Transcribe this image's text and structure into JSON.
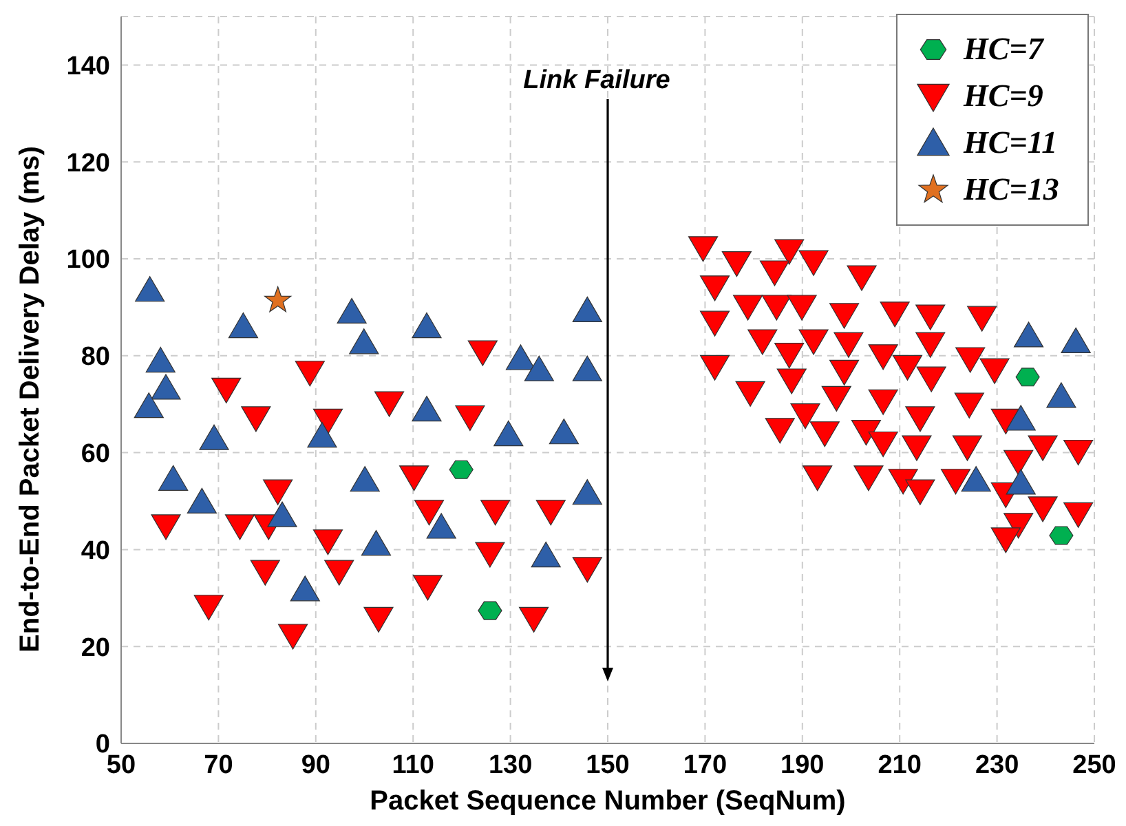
{
  "chart_data": {
    "type": "scatter",
    "xlabel": "Packet Sequence Number (SeqNum)",
    "ylabel": "End-to-End Packet Delivery Delay (ms)",
    "xlim": [
      50,
      250
    ],
    "xticks": [
      50,
      70,
      90,
      110,
      130,
      150,
      170,
      190,
      210,
      230,
      250
    ],
    "ylim": [
      0,
      150
    ],
    "yticks": [
      0,
      20,
      40,
      60,
      80,
      100,
      120,
      140
    ],
    "grid": true,
    "legend": "top right",
    "ref_lines": [
      {
        "axis": "x",
        "value": 150,
        "label": "Link Failure"
      }
    ],
    "series": [
      {
        "name": "HC=7",
        "color": "#00b050",
        "x": [
          119.9,
          125.8,
          236.3,
          243.2
        ],
        "values": [
          56.5,
          27.4,
          75.6,
          42.9
        ]
      },
      {
        "name": "HC=9",
        "color": "#ff0000",
        "marker": "triangle_down",
        "x": [
          88.8,
          71.6,
          77.7,
          92.5,
          82.2,
          59.2,
          74.4,
          80.3,
          92.5,
          79.6,
          94.8,
          68.0,
          85.3,
          124.3,
          105.1,
          121.7,
          110.2,
          113.3,
          126.9,
          138.3,
          125.8,
          145.8,
          113.0,
          102.9,
          134.8,
          169.6,
          176.5,
          187.3,
          184.3,
          192.3,
          202.2,
          172.0,
          178.8,
          184.7,
          189.9,
          198.6,
          172.0,
          181.8,
          192.3,
          199.5,
          187.3,
          206.6,
          172.0,
          198.6,
          187.8,
          179.3,
          197.0,
          206.6,
          190.6,
          185.4,
          194.6,
          203.1,
          206.6,
          193.1,
          203.6,
          209.0,
          216.3,
          226.9,
          216.3,
          211.6,
          216.5,
          224.5,
          229.5,
          214.2,
          224.3,
          231.8,
          213.5,
          223.9,
          239.4,
          246.7,
          234.4,
          210.7,
          221.5,
          214.2,
          231.8,
          239.4,
          246.7,
          234.4,
          231.8
        ],
        "values": [
          76.6,
          73.1,
          67.2,
          66.7,
          52.1,
          44.9,
          44.9,
          44.9,
          41.8,
          35.5,
          35.5,
          28.3,
          22.3,
          80.8,
          70.3,
          67.4,
          55.0,
          47.9,
          47.9,
          47.9,
          39.2,
          36.1,
          32.4,
          25.8,
          25.8,
          102.3,
          99.2,
          101.7,
          97.3,
          99.4,
          96.3,
          94.2,
          90.2,
          90.2,
          90.2,
          88.5,
          86.9,
          83.1,
          83.1,
          82.5,
          80.3,
          80.0,
          77.8,
          76.8,
          75.0,
          72.4,
          71.4,
          70.7,
          67.8,
          64.8,
          64.1,
          64.4,
          62.0,
          55.0,
          55.0,
          88.8,
          88.2,
          87.9,
          82.5,
          77.8,
          75.4,
          79.4,
          77.1,
          67.2,
          70.0,
          66.7,
          61.2,
          61.2,
          61.2,
          60.3,
          58.2,
          54.3,
          54.3,
          52.1,
          51.5,
          48.6,
          47.4,
          45.2,
          42.2
        ]
      },
      {
        "name": "HC=11",
        "color": "#2e5fa8",
        "marker": "triangle",
        "x": [
          55.9,
          75.1,
          97.4,
          99.9,
          58.1,
          59.2,
          55.7,
          69.1,
          91.3,
          60.7,
          66.6,
          83.1,
          87.8,
          112.8,
          145.8,
          132.1,
          135.9,
          145.8,
          112.8,
          129.6,
          141.0,
          100.1,
          145.8,
          115.8,
          102.4,
          137.3,
          236.5,
          246.2,
          243.2,
          234.9,
          225.7,
          234.9
        ],
        "values": [
          93.5,
          86.0,
          89.0,
          82.7,
          78.9,
          73.3,
          69.5,
          62.9,
          63.4,
          54.5,
          49.8,
          47.0,
          31.7,
          86.0,
          89.3,
          79.4,
          77.1,
          77.1,
          68.8,
          63.7,
          64.1,
          54.3,
          51.6,
          44.6,
          41.1,
          38.7,
          84.1,
          82.9,
          71.6,
          66.9,
          54.3,
          53.7
        ]
      },
      {
        "name": "HC=13",
        "color": "#e07020",
        "marker": "star",
        "x": [
          82.2
        ],
        "values": [
          91.4
        ]
      }
    ]
  }
}
